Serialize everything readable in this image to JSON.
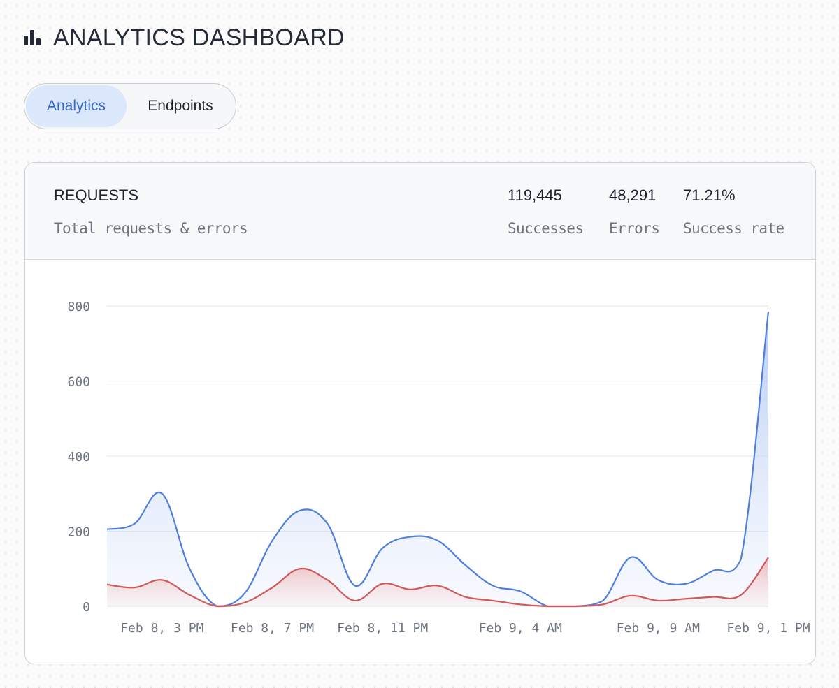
{
  "header": {
    "title": "ANALYTICS DASHBOARD",
    "icon": "bar-chart-icon"
  },
  "tabs": [
    {
      "label": "Analytics",
      "active": true
    },
    {
      "label": "Endpoints",
      "active": false
    }
  ],
  "card": {
    "title": "REQUESTS",
    "subtitle": "Total requests & errors",
    "stats": [
      {
        "value": "119,445",
        "label": "Successes"
      },
      {
        "value": "48,291",
        "label": "Errors"
      },
      {
        "value": "71.21%",
        "label": "Success rate"
      }
    ]
  },
  "colors": {
    "requests": "#4f7fdc",
    "errors": "#d05a5a",
    "active_tab_bg": "#dbe7fb",
    "active_tab_text": "#3569c8"
  },
  "chart_data": {
    "type": "area",
    "ylim": [
      0,
      800
    ],
    "yticks": [
      0,
      200,
      400,
      600,
      800
    ],
    "x_tick_labels": [
      {
        "label": "Feb 8, 3 PM",
        "at": 2
      },
      {
        "label": "Feb 8, 7 PM",
        "at": 6
      },
      {
        "label": "Feb 8, 11 PM",
        "at": 10
      },
      {
        "label": "Feb 9, 4 AM",
        "at": 15
      },
      {
        "label": "Feb 9, 9 AM",
        "at": 20
      },
      {
        "label": "Feb 9, 1 PM",
        "at": 24
      }
    ],
    "x_count": 25,
    "series": [
      {
        "name": "Requests",
        "color": "#4f7fdc",
        "values": [
          205,
          220,
          300,
          100,
          0,
          35,
          175,
          255,
          220,
          55,
          155,
          185,
          175,
          110,
          55,
          40,
          0,
          0,
          15,
          130,
          70,
          60,
          95,
          125,
          785
        ]
      },
      {
        "name": "Errors",
        "color": "#d05a5a",
        "values": [
          58,
          50,
          70,
          30,
          0,
          10,
          50,
          100,
          70,
          15,
          60,
          45,
          55,
          25,
          15,
          5,
          0,
          0,
          5,
          28,
          15,
          20,
          25,
          30,
          130
        ]
      }
    ]
  }
}
